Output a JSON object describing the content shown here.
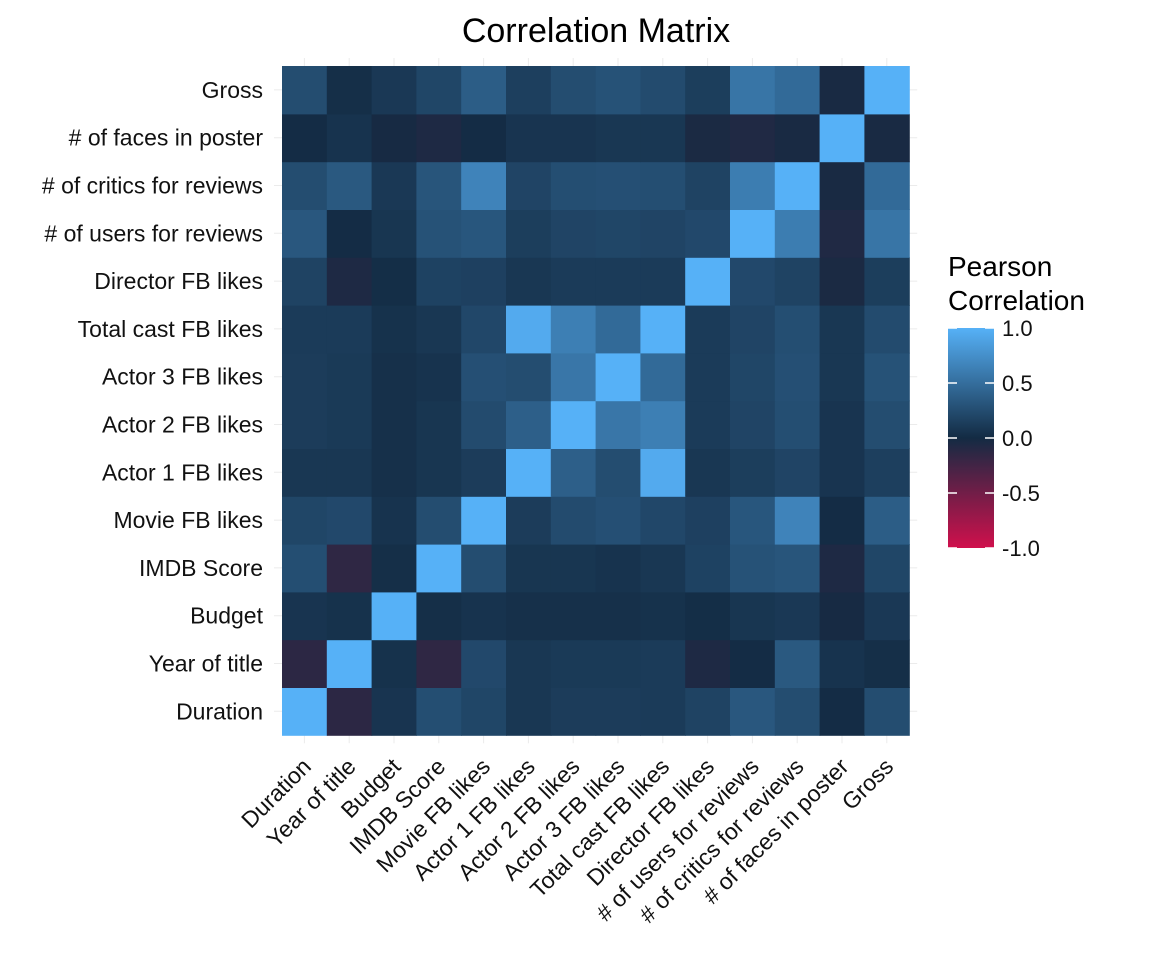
{
  "chart_data": {
    "type": "heatmap",
    "title": "Correlation Matrix",
    "xlabel": "",
    "ylabel": "",
    "variables": [
      "Duration",
      "Year of title",
      "Budget",
      "IMDB Score",
      "Movie FB likes",
      "Actor 1 FB likes",
      "Actor 2 FB likes",
      "Actor 3 FB likes",
      "Total cast FB likes",
      "Director FB likes",
      "# of users for reviews",
      "# of critics for reviews",
      "# of faces in poster",
      "Gross"
    ],
    "matrix": [
      [
        1.0,
        -0.13,
        0.07,
        0.26,
        0.2,
        0.09,
        0.13,
        0.13,
        0.12,
        0.18,
        0.33,
        0.25,
        0.01,
        0.25
      ],
      [
        -0.13,
        1.0,
        0.05,
        -0.15,
        0.22,
        0.09,
        0.11,
        0.11,
        0.12,
        -0.06,
        0.01,
        0.34,
        0.06,
        0.03
      ],
      [
        0.07,
        0.05,
        1.0,
        0.03,
        0.06,
        0.04,
        0.04,
        0.04,
        0.05,
        0.02,
        0.08,
        0.1,
        -0.02,
        0.1
      ],
      [
        0.26,
        -0.15,
        0.03,
        1.0,
        0.25,
        0.08,
        0.08,
        0.06,
        0.09,
        0.17,
        0.29,
        0.31,
        -0.06,
        0.2
      ],
      [
        0.2,
        0.22,
        0.06,
        0.25,
        1.0,
        0.13,
        0.24,
        0.27,
        0.21,
        0.16,
        0.32,
        0.66,
        0.01,
        0.37
      ],
      [
        0.09,
        0.09,
        0.04,
        0.08,
        0.13,
        1.0,
        0.39,
        0.25,
        0.95,
        0.09,
        0.14,
        0.19,
        0.07,
        0.15
      ],
      [
        0.13,
        0.11,
        0.04,
        0.08,
        0.24,
        0.39,
        1.0,
        0.56,
        0.63,
        0.12,
        0.19,
        0.26,
        0.07,
        0.25
      ],
      [
        0.13,
        0.11,
        0.04,
        0.06,
        0.27,
        0.25,
        0.56,
        1.0,
        0.47,
        0.12,
        0.2,
        0.27,
        0.09,
        0.29
      ],
      [
        0.12,
        0.12,
        0.05,
        0.09,
        0.21,
        0.95,
        0.63,
        0.47,
        1.0,
        0.12,
        0.19,
        0.26,
        0.09,
        0.24
      ],
      [
        0.18,
        -0.06,
        0.02,
        0.17,
        0.16,
        0.09,
        0.12,
        0.12,
        0.12,
        1.0,
        0.22,
        0.18,
        -0.04,
        0.14
      ],
      [
        0.33,
        0.01,
        0.08,
        0.29,
        0.32,
        0.14,
        0.19,
        0.2,
        0.19,
        0.22,
        1.0,
        0.61,
        -0.07,
        0.55
      ],
      [
        0.25,
        0.34,
        0.1,
        0.31,
        0.66,
        0.19,
        0.26,
        0.27,
        0.26,
        0.18,
        0.61,
        1.0,
        -0.03,
        0.47
      ],
      [
        0.01,
        0.06,
        -0.02,
        -0.06,
        0.01,
        0.07,
        0.07,
        0.09,
        0.09,
        -0.04,
        -0.07,
        -0.03,
        1.0,
        -0.03
      ],
      [
        0.25,
        0.03,
        0.1,
        0.2,
        0.37,
        0.15,
        0.25,
        0.29,
        0.24,
        0.14,
        0.55,
        0.47,
        -0.03,
        1.0
      ]
    ],
    "legend": {
      "title_line1": "Pearson",
      "title_line2": "Correlation",
      "breaks": [
        1.0,
        0.5,
        0.0,
        -0.5,
        -1.0
      ],
      "labels": [
        "1.0",
        "0.5",
        "0.0",
        "-0.5",
        "-1.0"
      ],
      "position": "right"
    },
    "range": [
      -1,
      1
    ],
    "colors": {
      "high": "#56b1f7",
      "mid": "#132b43",
      "low": "#d0104c"
    }
  }
}
